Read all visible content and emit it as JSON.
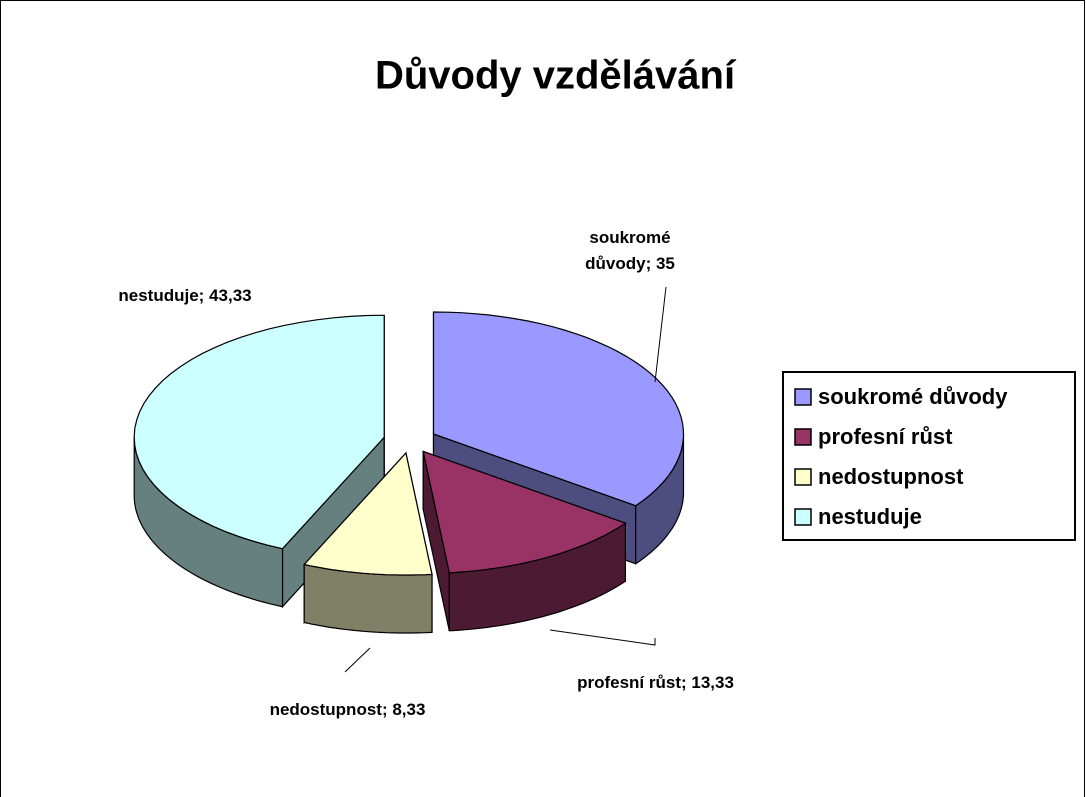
{
  "chart_data": {
    "type": "pie",
    "title": "Důvody vzdělávání",
    "categories": [
      "soukromé důvody",
      "profesní růst",
      "nedostupnost",
      "nestuduje"
    ],
    "values": [
      35,
      13.33,
      8.33,
      43.33
    ],
    "value_labels": [
      "soukromé důvody; 35",
      "profesní růst; 13,33",
      "nedostupnost; 8,33",
      "nestuduje; 43,33"
    ],
    "colors": [
      "#9999ff",
      "#993366",
      "#ffffcc",
      "#ccffff"
    ],
    "legend": "right"
  }
}
